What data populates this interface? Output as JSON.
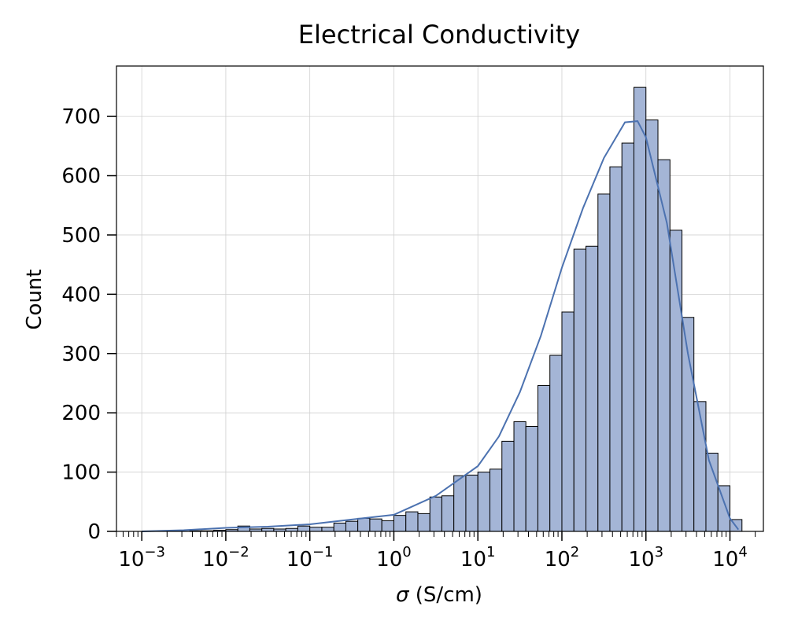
{
  "chart_data": {
    "type": "bar",
    "title": "Electrical Conductivity",
    "xlabel_symbol": "σ",
    "xlabel_unit": " (S/cm)",
    "ylabel": "Count",
    "x_scale": "log",
    "x_range": [
      0.0005,
      25000
    ],
    "ylim": [
      0,
      785
    ],
    "x_ticks": [
      {
        "base": "10",
        "exp": "−3",
        "value": 0.001
      },
      {
        "base": "10",
        "exp": "−2",
        "value": 0.01
      },
      {
        "base": "10",
        "exp": "−1",
        "value": 0.1
      },
      {
        "base": "10",
        "exp": "0",
        "value": 1
      },
      {
        "base": "10",
        "exp": "1",
        "value": 10
      },
      {
        "base": "10",
        "exp": "2",
        "value": 100
      },
      {
        "base": "10",
        "exp": "3",
        "value": 1000
      },
      {
        "base": "10",
        "exp": "4",
        "value": 10000
      }
    ],
    "y_ticks": [
      "0",
      "100",
      "200",
      "300",
      "400",
      "500",
      "600",
      "700"
    ],
    "grid": true,
    "bar_fill": "#a4b5d6",
    "bar_edge": "#000000",
    "kde_color": "#4c72b0",
    "bin_edges_log10": [
      -3.0,
      -2.857,
      -2.714,
      -2.571,
      -2.429,
      -2.286,
      -2.143,
      -2.0,
      -1.857,
      -1.714,
      -1.571,
      -1.429,
      -1.286,
      -1.143,
      -1.0,
      -0.857,
      -0.714,
      -0.571,
      -0.429,
      -0.286,
      -0.143,
      0.0,
      0.143,
      0.286,
      0.429,
      0.571,
      0.714,
      0.857,
      1.0,
      1.143,
      1.286,
      1.429,
      1.571,
      1.714,
      1.857,
      2.0,
      2.143,
      2.286,
      2.429,
      2.571,
      2.714,
      2.857,
      3.0,
      3.143,
      3.286,
      3.429,
      3.571,
      3.714,
      3.857,
      4.0,
      4.143
    ],
    "counts": [
      0,
      0,
      0,
      0,
      1,
      1,
      2,
      3,
      9,
      4,
      5,
      4,
      5,
      9,
      7,
      7,
      14,
      17,
      22,
      21,
      18,
      27,
      33,
      30,
      58,
      60,
      94,
      95,
      100,
      105,
      152,
      185,
      177,
      246,
      297,
      370,
      476,
      481,
      569,
      615,
      655,
      749,
      694,
      627,
      508,
      361,
      219,
      132,
      77,
      20,
      2
    ],
    "kde_log10_x": [
      -3.0,
      -2.5,
      -2.0,
      -1.5,
      -1.0,
      -0.5,
      0.0,
      0.5,
      1.0,
      1.25,
      1.5,
      1.75,
      2.0,
      2.25,
      2.5,
      2.75,
      2.9,
      3.0,
      3.25,
      3.5,
      3.75,
      4.0,
      4.1
    ],
    "kde_y": [
      0,
      2,
      6,
      8,
      12,
      20,
      28,
      60,
      110,
      160,
      235,
      330,
      445,
      545,
      630,
      690,
      692,
      665,
      520,
      300,
      120,
      22,
      3
    ]
  }
}
